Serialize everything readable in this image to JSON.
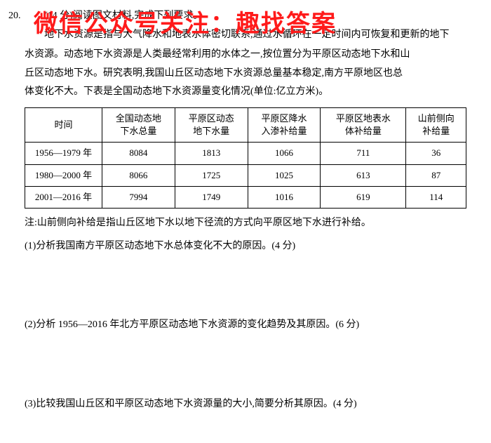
{
  "watermark": "微信公众号关注：趣找答案",
  "questionNumber": "20.",
  "scorePrefix": "(14 分)阅读图文材料,完成下列要求。",
  "paragraph1": "地下水资源是指与大气降水和地表水体密切联系,通过水循环在一定时间内可恢复和更新的地下",
  "paragraph2": "水资源。动态地下水资源是人类最经常利用的水体之一,按位置分为平原区动态地下水和山",
  "paragraph3": "丘区动态地下水。研究表明,我国山丘区动态地下水资源总量基本稳定,南方平原地区也总",
  "paragraph4": "体变化不大。下表是全国动态地下水资源量变化情况(单位:亿立方米)。",
  "table": {
    "headers": [
      "时间",
      "全国动态地\n下水总量",
      "平原区动态\n地下水量",
      "平原区降水\n入渗补给量",
      "平原区地表水\n体补给量",
      "山前侧向\n补给量"
    ],
    "rows": [
      [
        "1956—1979 年",
        "8084",
        "1813",
        "1066",
        "711",
        "36"
      ],
      [
        "1980—2000 年",
        "8066",
        "1725",
        "1025",
        "613",
        "87"
      ],
      [
        "2001—2016 年",
        "7994",
        "1749",
        "1016",
        "619",
        "114"
      ]
    ]
  },
  "note": "注:山前侧向补给是指山丘区地下水以地下径流的方式向平原区地下水进行补给。",
  "subQuestions": [
    "(1)分析我国南方平原区动态地下水总体变化不大的原因。(4 分)",
    "(2)分析 1956—2016 年北方平原区动态地下水资源的变化趋势及其原因。(6 分)",
    "(3)比较我国山丘区和平原区动态地下水资源量的大小,简要分析其原因。(4 分)"
  ]
}
